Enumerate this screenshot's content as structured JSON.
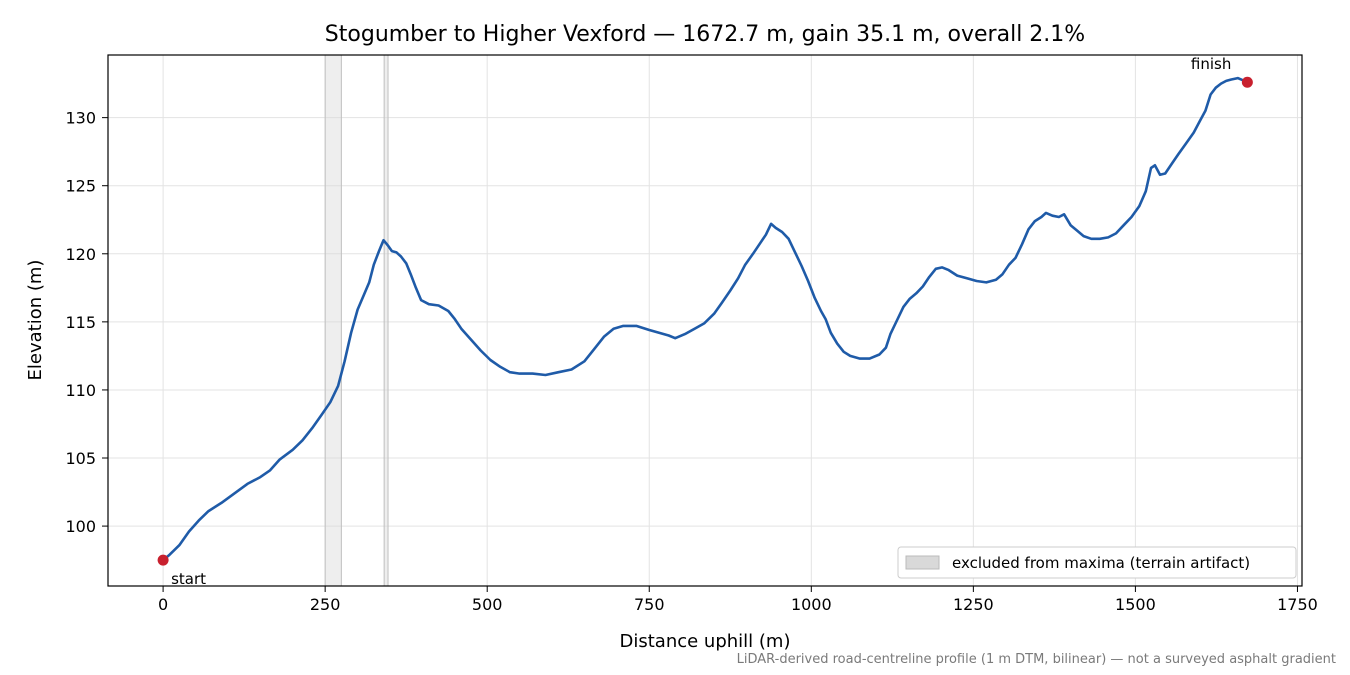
{
  "chart_data": {
    "type": "line",
    "title": "Stogumber to Higher Vexford — 1672.7 m, gain 35.1 m, overall 2.1%",
    "xlabel": "Distance uphill (m)",
    "ylabel": "Elevation (m)",
    "xlim": [
      -85,
      1757
    ],
    "ylim": [
      95.6,
      134.6
    ],
    "x_ticks": [
      0,
      250,
      500,
      750,
      1000,
      1250,
      1500,
      1750
    ],
    "y_ticks": [
      100,
      105,
      110,
      115,
      120,
      125,
      130
    ],
    "grid": true,
    "legend_position": "lower-right",
    "line_color": "#1f5ba8",
    "marker_color": "#c8202e",
    "band_color": "#d9d9d9",
    "excluded_band_label": "excluded from maxima (terrain artifact)",
    "excluded_bands": [
      [
        250,
        275
      ],
      [
        341,
        347
      ]
    ],
    "markers": [
      {
        "label": "start",
        "x": 0,
        "y": 97.5
      },
      {
        "label": "finish",
        "x": 1672.7,
        "y": 132.6
      }
    ],
    "series": [
      {
        "values": [
          [
            0,
            97.5
          ],
          [
            10,
            97.9
          ],
          [
            25,
            98.6
          ],
          [
            40,
            99.6
          ],
          [
            55,
            100.4
          ],
          [
            70,
            101.1
          ],
          [
            90,
            101.7
          ],
          [
            110,
            102.4
          ],
          [
            130,
            103.1
          ],
          [
            150,
            103.6
          ],
          [
            165,
            104.1
          ],
          [
            180,
            104.9
          ],
          [
            200,
            105.6
          ],
          [
            215,
            106.3
          ],
          [
            230,
            107.2
          ],
          [
            245,
            108.2
          ],
          [
            258,
            109.1
          ],
          [
            270,
            110.3
          ],
          [
            280,
            112.1
          ],
          [
            290,
            114.2
          ],
          [
            300,
            115.9
          ],
          [
            310,
            117.0
          ],
          [
            318,
            117.9
          ],
          [
            325,
            119.2
          ],
          [
            333,
            120.2
          ],
          [
            340,
            121.0
          ],
          [
            347,
            120.6
          ],
          [
            353,
            120.2
          ],
          [
            360,
            120.1
          ],
          [
            367,
            119.8
          ],
          [
            375,
            119.3
          ],
          [
            382,
            118.5
          ],
          [
            390,
            117.5
          ],
          [
            398,
            116.6
          ],
          [
            410,
            116.3
          ],
          [
            425,
            116.2
          ],
          [
            440,
            115.8
          ],
          [
            450,
            115.2
          ],
          [
            460,
            114.5
          ],
          [
            475,
            113.7
          ],
          [
            490,
            112.9
          ],
          [
            505,
            112.2
          ],
          [
            520,
            111.7
          ],
          [
            535,
            111.3
          ],
          [
            550,
            111.2
          ],
          [
            570,
            111.2
          ],
          [
            590,
            111.1
          ],
          [
            610,
            111.3
          ],
          [
            630,
            111.5
          ],
          [
            650,
            112.1
          ],
          [
            665,
            113.0
          ],
          [
            680,
            113.9
          ],
          [
            695,
            114.5
          ],
          [
            710,
            114.7
          ],
          [
            730,
            114.7
          ],
          [
            750,
            114.4
          ],
          [
            765,
            114.2
          ],
          [
            780,
            114.0
          ],
          [
            790,
            113.8
          ],
          [
            805,
            114.1
          ],
          [
            820,
            114.5
          ],
          [
            835,
            114.9
          ],
          [
            850,
            115.6
          ],
          [
            862,
            116.4
          ],
          [
            875,
            117.3
          ],
          [
            887,
            118.2
          ],
          [
            898,
            119.2
          ],
          [
            910,
            120.0
          ],
          [
            920,
            120.7
          ],
          [
            930,
            121.4
          ],
          [
            938,
            122.2
          ],
          [
            945,
            121.9
          ],
          [
            955,
            121.6
          ],
          [
            965,
            121.1
          ],
          [
            975,
            120.1
          ],
          [
            985,
            119.1
          ],
          [
            995,
            118.0
          ],
          [
            1005,
            116.8
          ],
          [
            1015,
            115.8
          ],
          [
            1022,
            115.2
          ],
          [
            1030,
            114.2
          ],
          [
            1040,
            113.4
          ],
          [
            1050,
            112.8
          ],
          [
            1060,
            112.5
          ],
          [
            1075,
            112.3
          ],
          [
            1090,
            112.3
          ],
          [
            1105,
            112.6
          ],
          [
            1115,
            113.1
          ],
          [
            1122,
            114.1
          ],
          [
            1132,
            115.1
          ],
          [
            1142,
            116.1
          ],
          [
            1152,
            116.7
          ],
          [
            1162,
            117.1
          ],
          [
            1172,
            117.6
          ],
          [
            1182,
            118.3
          ],
          [
            1192,
            118.9
          ],
          [
            1202,
            119.0
          ],
          [
            1212,
            118.8
          ],
          [
            1225,
            118.4
          ],
          [
            1240,
            118.2
          ],
          [
            1255,
            118.0
          ],
          [
            1270,
            117.9
          ],
          [
            1285,
            118.1
          ],
          [
            1295,
            118.5
          ],
          [
            1305,
            119.2
          ],
          [
            1315,
            119.7
          ],
          [
            1325,
            120.7
          ],
          [
            1335,
            121.8
          ],
          [
            1345,
            122.4
          ],
          [
            1355,
            122.7
          ],
          [
            1362,
            123.0
          ],
          [
            1372,
            122.8
          ],
          [
            1382,
            122.7
          ],
          [
            1390,
            122.9
          ],
          [
            1400,
            122.1
          ],
          [
            1410,
            121.7
          ],
          [
            1420,
            121.3
          ],
          [
            1432,
            121.1
          ],
          [
            1445,
            121.1
          ],
          [
            1458,
            121.2
          ],
          [
            1470,
            121.5
          ],
          [
            1482,
            122.1
          ],
          [
            1494,
            122.7
          ],
          [
            1506,
            123.5
          ],
          [
            1516,
            124.6
          ],
          [
            1524,
            126.3
          ],
          [
            1530,
            126.5
          ],
          [
            1538,
            125.8
          ],
          [
            1546,
            125.9
          ],
          [
            1556,
            126.6
          ],
          [
            1566,
            127.3
          ],
          [
            1578,
            128.1
          ],
          [
            1590,
            128.9
          ],
          [
            1600,
            129.8
          ],
          [
            1608,
            130.5
          ],
          [
            1616,
            131.7
          ],
          [
            1624,
            132.2
          ],
          [
            1632,
            132.5
          ],
          [
            1640,
            132.7
          ],
          [
            1648,
            132.8
          ],
          [
            1658,
            132.9
          ],
          [
            1672.7,
            132.6
          ]
        ]
      }
    ]
  },
  "footnote": "LiDAR-derived road-centreline profile (1 m DTM, bilinear) — not a surveyed asphalt gradient"
}
